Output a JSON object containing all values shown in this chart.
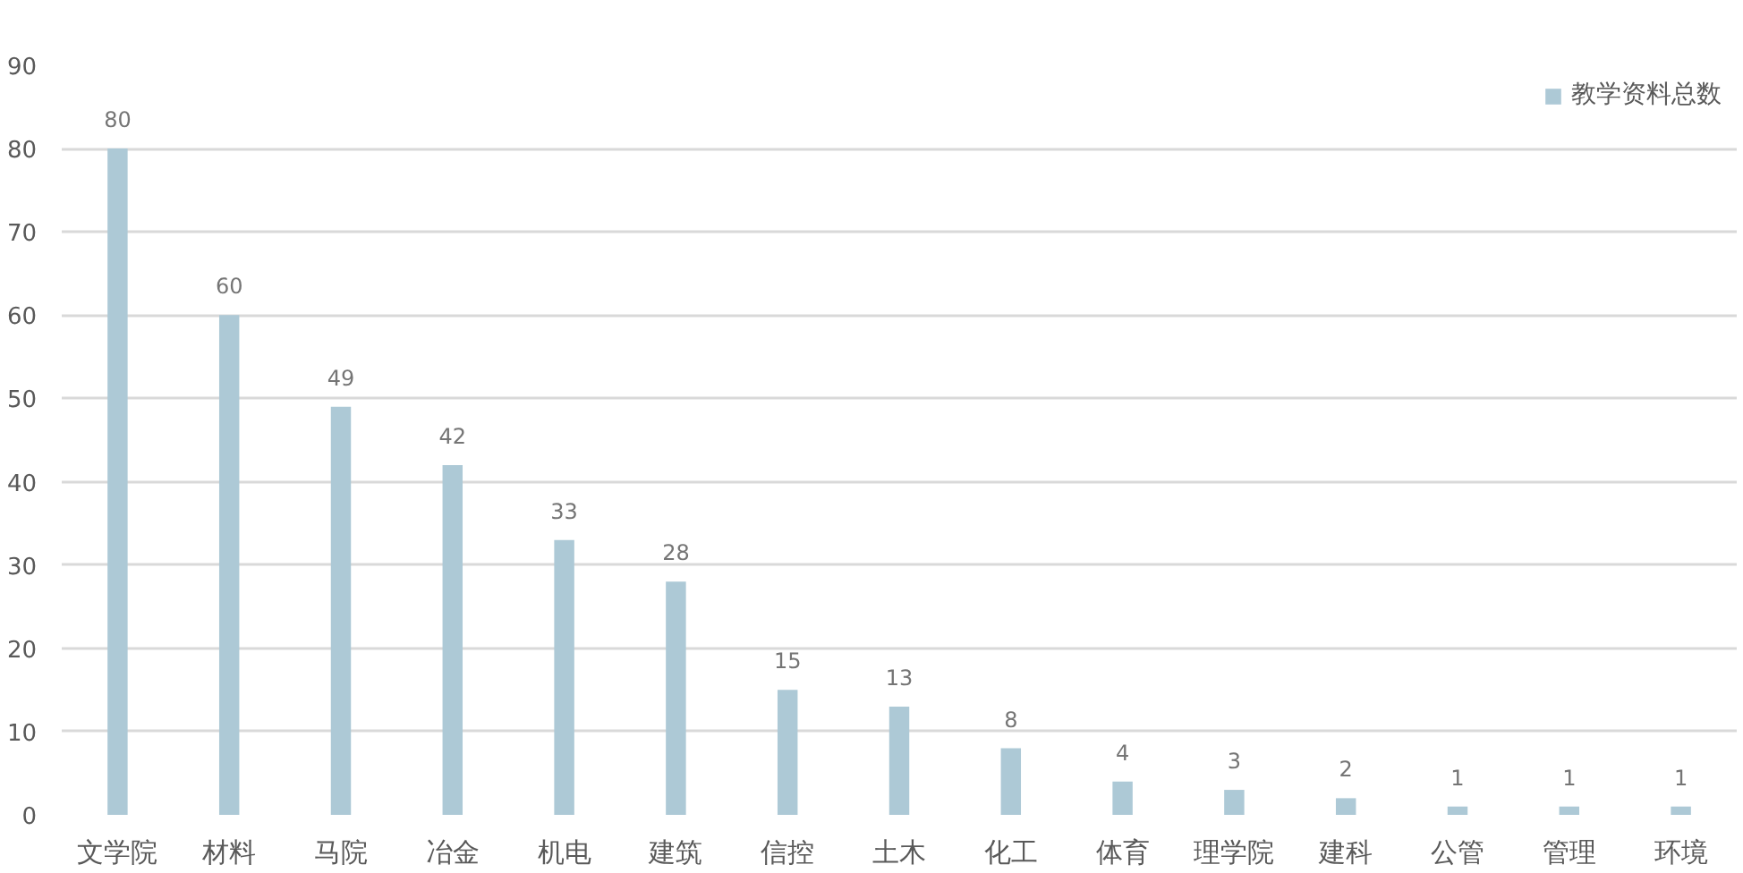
{
  "chart_data": {
    "type": "bar",
    "categories": [
      "文学院",
      "材料",
      "马院",
      "冶金",
      "机电",
      "建筑",
      "信控",
      "土木",
      "化工",
      "体育",
      "理学院",
      "建科",
      "公管",
      "管理",
      "环境"
    ],
    "series": [
      {
        "name": "教学资料总数",
        "color": "#adc9d6",
        "values": [
          80,
          60,
          49,
          42,
          33,
          28,
          15,
          13,
          8,
          4,
          3,
          2,
          1,
          1,
          1
        ]
      }
    ],
    "ylim": [
      0,
      90
    ],
    "yticks": [
      0,
      10,
      20,
      30,
      40,
      50,
      60,
      70,
      80,
      90
    ],
    "grid": "y",
    "legend": "top right",
    "data_labels": true
  }
}
